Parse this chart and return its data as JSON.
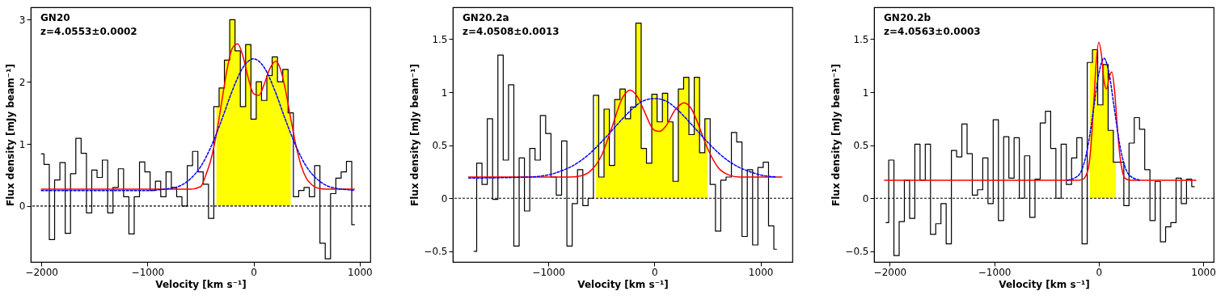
{
  "chart_data": [
    {
      "type": "step",
      "xlabel": "Velocity [km s⁻¹]",
      "ylabel": "Flux density [mJy beam⁻¹]",
      "xlim": [
        -2100,
        1100
      ],
      "ylim": [
        -0.9,
        3.2
      ],
      "xticks": [
        -2000,
        -1000,
        0,
        1000
      ],
      "yticks": [
        0,
        1,
        2,
        3
      ],
      "grid": false,
      "annotations": [
        "GN20",
        "z=4.0553±0.0002"
      ],
      "ref_lines": [
        {
          "axis": "y",
          "value": 0,
          "color": "#000000",
          "line_style": "dashed"
        }
      ],
      "x": [
        -2000,
        -1950,
        -1900,
        -1850,
        -1800,
        -1750,
        -1700,
        -1650,
        -1600,
        -1550,
        -1500,
        -1450,
        -1400,
        -1350,
        -1300,
        -1250,
        -1200,
        -1150,
        -1100,
        -1050,
        -1000,
        -950,
        -900,
        -850,
        -800,
        -750,
        -700,
        -650,
        -600,
        -550,
        -500,
        -450,
        -400,
        -350,
        -300,
        -250,
        -200,
        -150,
        -100,
        -50,
        0,
        50,
        100,
        150,
        200,
        250,
        300,
        350,
        400,
        450,
        500,
        550,
        600,
        650,
        700,
        750,
        800,
        850,
        900,
        950
      ],
      "series": [
        {
          "type": "area",
          "color": "#ffff00",
          "x": [
            -350,
            -300,
            -250,
            -200,
            -150,
            -100,
            -50,
            0,
            50,
            100,
            150,
            200,
            250,
            300,
            350
          ],
          "values": [
            1.6,
            1.9,
            2.35,
            3.0,
            2.5,
            1.6,
            2.6,
            1.4,
            2.0,
            1.7,
            2.1,
            2.4,
            2.0,
            2.2,
            1.5
          ]
        },
        {
          "type": "step",
          "color": "#000000",
          "values": [
            0.84,
            0.67,
            -0.54,
            0.42,
            0.7,
            -0.44,
            0.52,
            1.09,
            0.85,
            -0.11,
            0.58,
            0.46,
            0.74,
            -0.11,
            0.3,
            0.6,
            0.15,
            -0.45,
            0.15,
            0.71,
            0.55,
            0.25,
            0.4,
            0.15,
            0.55,
            0.3,
            0.15,
            0.0,
            0.65,
            0.88,
            0.55,
            0.35,
            -0.2,
            1.6,
            1.9,
            2.35,
            3.0,
            2.5,
            1.6,
            2.6,
            1.4,
            2.0,
            1.7,
            2.1,
            2.4,
            2.0,
            2.2,
            1.5,
            0.15,
            0.25,
            0.3,
            0.15,
            0.65,
            -0.6,
            -0.85,
            0.2,
            0.45,
            0.55,
            0.72,
            -0.3
          ]
        },
        {
          "type": "line",
          "color": "#0000ff",
          "line_style": "dashed",
          "x": [
            -2000,
            -1000,
            -900,
            -800,
            -700,
            -600,
            -500,
            -400,
            -300,
            -200,
            -100,
            0,
            100,
            200,
            300,
            400,
            500,
            600,
            700,
            800,
            900,
            950
          ],
          "values": [
            0.25,
            0.25,
            0.26,
            0.28,
            0.32,
            0.43,
            0.63,
            0.96,
            1.39,
            1.86,
            2.23,
            2.37,
            2.23,
            1.86,
            1.39,
            0.96,
            0.63,
            0.43,
            0.32,
            0.28,
            0.26,
            0.25
          ]
        },
        {
          "type": "line",
          "color": "#ff0000",
          "line_style": "solid",
          "x": [
            -2000,
            -1000,
            -600,
            -500,
            -450,
            -400,
            -350,
            -300,
            -250,
            -200,
            -150,
            -100,
            -50,
            0,
            50,
            100,
            150,
            210,
            250,
            300,
            350,
            400,
            450,
            500,
            550,
            600,
            700,
            950
          ],
          "values": [
            0.27,
            0.27,
            0.27,
            0.31,
            0.5,
            0.76,
            1.16,
            1.68,
            2.2,
            2.54,
            2.61,
            2.41,
            2.06,
            1.81,
            1.78,
            1.96,
            2.2,
            2.33,
            2.22,
            1.87,
            1.41,
            0.97,
            0.64,
            0.44,
            0.34,
            0.29,
            0.27,
            0.27
          ]
        }
      ]
    },
    {
      "type": "step",
      "xlabel": "Velocity [km s⁻¹]",
      "ylabel": "Flux density [mJy beam⁻¹]",
      "xlim": [
        -1900,
        1300
      ],
      "ylim": [
        -0.6,
        1.8
      ],
      "xticks": [
        -1000,
        0,
        1000
      ],
      "yticks": [
        -0.5,
        0,
        0.5,
        1,
        1.5
      ],
      "grid": false,
      "annotations": [
        "GN20.2a",
        "z=4.0508±0.0013"
      ],
      "ref_lines": [
        {
          "axis": "y",
          "value": 0,
          "color": "#000000",
          "line_style": "dashed"
        }
      ],
      "x": [
        -1700,
        -1650,
        -1600,
        -1550,
        -1500,
        -1450,
        -1400,
        -1350,
        -1300,
        -1250,
        -1200,
        -1150,
        -1100,
        -1050,
        -1000,
        -950,
        -900,
        -850,
        -800,
        -750,
        -700,
        -650,
        -600,
        -550,
        -500,
        -450,
        -400,
        -350,
        -300,
        -250,
        -200,
        -150,
        -100,
        -50,
        0,
        50,
        100,
        150,
        200,
        250,
        300,
        350,
        400,
        450,
        500,
        550,
        600,
        650,
        700,
        750,
        800,
        850,
        900,
        950,
        1000,
        1050,
        1100,
        1150
      ],
      "series": [
        {
          "type": "area",
          "color": "#ffff00",
          "x": [
            -550,
            -500,
            -450,
            -400,
            -350,
            -300,
            -250,
            -200,
            -150,
            -100,
            -50,
            0,
            50,
            100,
            150,
            200,
            250,
            300,
            350,
            400,
            450,
            500
          ],
          "values": [
            0.97,
            0.2,
            0.84,
            0.31,
            0.93,
            1.03,
            0.75,
            0.86,
            1.65,
            0.47,
            0.33,
            0.98,
            0.72,
            0.99,
            0.72,
            0.16,
            1.03,
            1.14,
            0.6,
            1.14,
            0.43,
            0.75
          ]
        },
        {
          "type": "step",
          "color": "#000000",
          "values": [
            -0.5,
            0.33,
            0.13,
            0.75,
            -0.01,
            1.35,
            0.36,
            1.07,
            -0.45,
            0.38,
            -0.12,
            0.47,
            0.36,
            0.78,
            0.61,
            0.2,
            0.03,
            0.54,
            -0.45,
            -0.05,
            0.27,
            -0.07,
            0.0,
            0.97,
            0.2,
            0.84,
            0.31,
            0.93,
            1.03,
            0.75,
            0.86,
            1.65,
            0.47,
            0.33,
            0.98,
            0.72,
            0.99,
            0.72,
            0.16,
            1.03,
            1.14,
            0.6,
            1.14,
            0.43,
            0.75,
            0.13,
            -0.31,
            0.17,
            0.2,
            0.62,
            0.53,
            -0.36,
            0.27,
            -0.44,
            0.29,
            0.34,
            -0.26,
            -0.48
          ]
        },
        {
          "type": "line",
          "color": "#0000ff",
          "line_style": "dashed",
          "x": [
            -1750,
            -1200,
            -1000,
            -900,
            -800,
            -700,
            -600,
            -500,
            -400,
            -300,
            -200,
            -100,
            0,
            100,
            200,
            300,
            400,
            500,
            600,
            700,
            800,
            900,
            1000,
            1150
          ],
          "values": [
            0.19,
            0.2,
            0.22,
            0.25,
            0.29,
            0.35,
            0.43,
            0.53,
            0.64,
            0.75,
            0.85,
            0.92,
            0.94,
            0.92,
            0.85,
            0.75,
            0.64,
            0.53,
            0.43,
            0.35,
            0.29,
            0.25,
            0.22,
            0.2
          ]
        },
        {
          "type": "line",
          "color": "#ff0000",
          "line_style": "solid",
          "x": [
            -1750,
            -900,
            -800,
            -700,
            -600,
            -500,
            -400,
            -300,
            -230,
            -150,
            -100,
            0,
            50,
            100,
            200,
            280,
            350,
            400,
            500,
            600,
            700,
            800,
            1200
          ],
          "values": [
            0.2,
            0.2,
            0.2,
            0.21,
            0.26,
            0.4,
            0.67,
            0.95,
            1.02,
            0.94,
            0.83,
            0.64,
            0.63,
            0.67,
            0.84,
            0.9,
            0.84,
            0.73,
            0.47,
            0.29,
            0.22,
            0.2,
            0.2
          ]
        }
      ]
    },
    {
      "type": "step",
      "xlabel": "Velocity [km s⁻¹]",
      "ylabel": "Flux density [mJy beam⁻¹]",
      "xlim": [
        -2150,
        1100
      ],
      "ylim": [
        -0.6,
        1.8
      ],
      "xticks": [
        -2000,
        -1000,
        0,
        1000
      ],
      "yticks": [
        -0.5,
        0,
        0.5,
        1,
        1.5
      ],
      "grid": false,
      "annotations": [
        "GN20.2b",
        "z=4.0563±0.0003"
      ],
      "ref_lines": [
        {
          "axis": "y",
          "value": 0,
          "color": "#000000",
          "line_style": "dashed"
        }
      ],
      "x": [
        -2035,
        -1985,
        -1935,
        -1885,
        -1835,
        -1785,
        -1735,
        -1685,
        -1635,
        -1585,
        -1535,
        -1485,
        -1435,
        -1385,
        -1335,
        -1285,
        -1235,
        -1185,
        -1135,
        -1085,
        -1035,
        -985,
        -935,
        -885,
        -835,
        -785,
        -735,
        -685,
        -635,
        -585,
        -535,
        -485,
        -435,
        -385,
        -335,
        -285,
        -235,
        -185,
        -135,
        -85,
        -35,
        15,
        65,
        115,
        165,
        215,
        265,
        315,
        365,
        415,
        465,
        515,
        565,
        615,
        665,
        715,
        765,
        815,
        865,
        915
      ],
      "series": [
        {
          "type": "area",
          "color": "#ffff00",
          "x": [
            -85,
            -35,
            15,
            65,
            115,
            165
          ],
          "values": [
            1.28,
            1.4,
            0.88,
            1.26,
            0.64,
            0.34
          ]
        },
        {
          "type": "step",
          "color": "#000000",
          "values": [
            -0.23,
            0.36,
            -0.54,
            -0.22,
            0.17,
            -0.19,
            0.51,
            0.17,
            0.51,
            -0.34,
            -0.24,
            -0.05,
            -0.43,
            0.45,
            0.39,
            0.7,
            0.42,
            0.03,
            0.08,
            0.38,
            -0.05,
            0.74,
            -0.21,
            0.58,
            0.19,
            0.57,
            0.0,
            0.4,
            -0.18,
            0.18,
            0.71,
            0.82,
            0.47,
            0.0,
            0.51,
            0.13,
            0.38,
            0.57,
            -0.43,
            1.28,
            1.4,
            0.88,
            1.26,
            0.64,
            0.34,
            0.34,
            -0.07,
            0.52,
            0.76,
            0.65,
            0.27,
            -0.21,
            0.16,
            -0.41,
            -0.27,
            -0.23,
            0.19,
            -0.05,
            0.18,
            0.11
          ]
        },
        {
          "type": "line",
          "color": "#0000ff",
          "line_style": "dashed",
          "x": [
            -300,
            -200,
            -150,
            -100,
            -50,
            0,
            50,
            100,
            150,
            200,
            250,
            300,
            400
          ],
          "values": [
            0.17,
            0.21,
            0.3,
            0.51,
            0.84,
            1.17,
            1.32,
            1.17,
            0.84,
            0.51,
            0.3,
            0.21,
            0.17
          ]
        },
        {
          "type": "line",
          "color": "#ff0000",
          "line_style": "solid",
          "x": [
            -2050,
            -200,
            -150,
            -100,
            -75,
            -50,
            -25,
            0,
            25,
            50,
            75,
            100,
            125,
            150,
            175,
            200,
            225,
            250,
            300,
            930
          ],
          "values": [
            0.17,
            0.17,
            0.18,
            0.28,
            0.49,
            0.86,
            1.27,
            1.47,
            1.36,
            1.11,
            1.03,
            1.14,
            1.19,
            1.03,
            0.71,
            0.42,
            0.26,
            0.19,
            0.17,
            0.17
          ]
        }
      ]
    }
  ]
}
